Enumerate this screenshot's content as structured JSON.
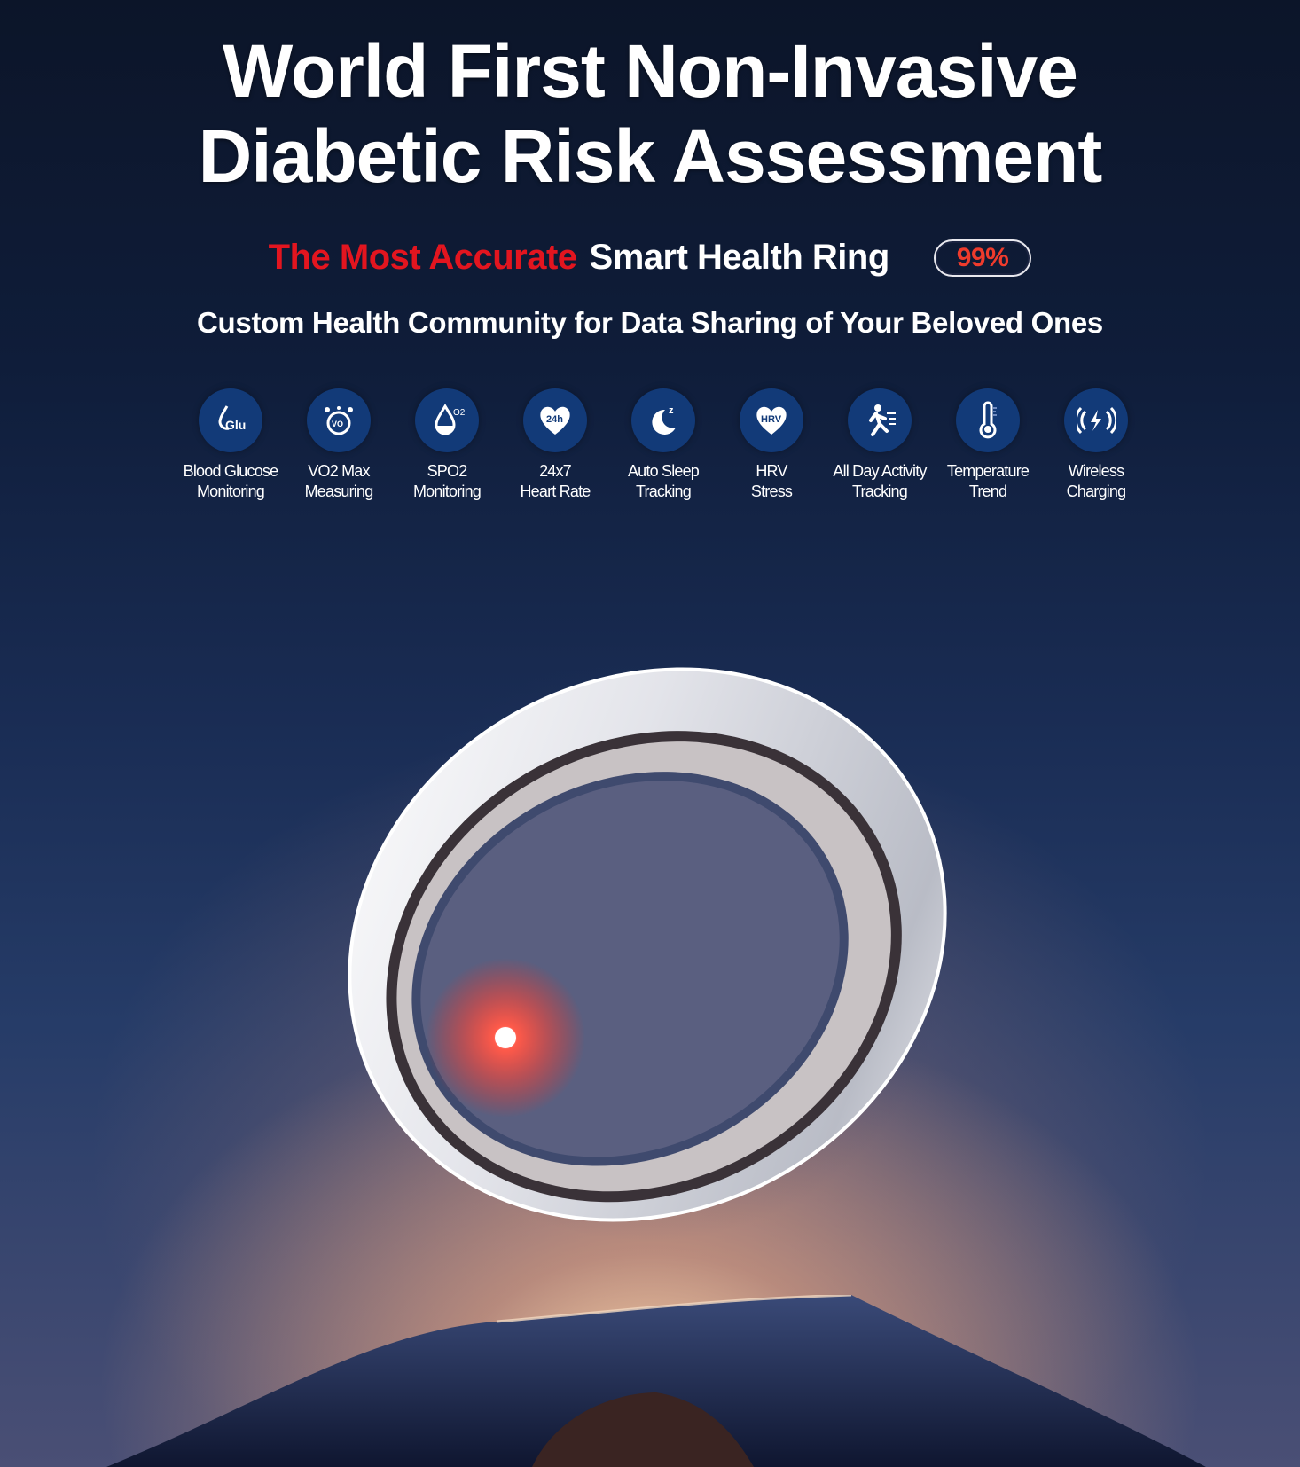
{
  "headline": {
    "line1": "World First Non-Invasive",
    "line2": "Diabetic Risk Assessment"
  },
  "subheadline": {
    "highlight": "The Most Accurate",
    "rest": "Smart Health Ring",
    "badge": "99%"
  },
  "tagline": "Custom Health Community for Data Sharing of Your Beloved Ones",
  "colors": {
    "accent_red": "#e3151f",
    "icon_circle": "#123a78",
    "background_top": "#0c1529"
  },
  "features": [
    {
      "icon": "glucose-drop-icon",
      "glyph": "Glu",
      "line1": "Blood Glucose",
      "line2": "Monitoring"
    },
    {
      "icon": "vo2-icon",
      "glyph": "VO2",
      "line1": "VO2 Max",
      "line2": "Measuring"
    },
    {
      "icon": "spo2-drop-icon",
      "glyph": "O2",
      "line1": "SPO2",
      "line2": "Monitoring"
    },
    {
      "icon": "heart-24h-icon",
      "glyph": "24h",
      "line1": "24x7",
      "line2": "Heart Rate"
    },
    {
      "icon": "moon-sleep-icon",
      "glyph": "z",
      "line1": "Auto Sleep",
      "line2": "Tracking"
    },
    {
      "icon": "heart-hrv-icon",
      "glyph": "HRV",
      "line1": "HRV",
      "line2": "Stress"
    },
    {
      "icon": "running-person-icon",
      "glyph": "",
      "line1": "All Day Activity",
      "line2": "Tracking"
    },
    {
      "icon": "thermometer-icon",
      "glyph": "",
      "line1": "Temperature",
      "line2": "Trend"
    },
    {
      "icon": "wireless-charging-icon",
      "glyph": "",
      "line1": "Wireless",
      "line2": "Charging"
    }
  ]
}
